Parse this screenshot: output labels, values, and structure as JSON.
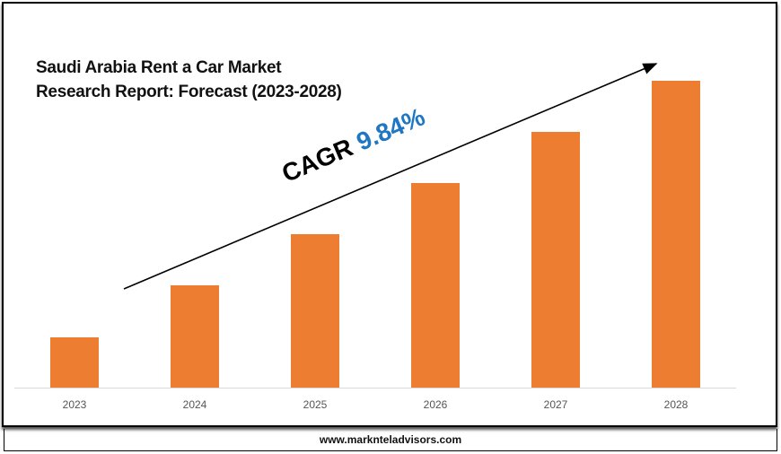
{
  "chart_data": {
    "type": "bar",
    "title": "Saudi Arabia Rent a Car Market Research Report: Forecast (2023-2028)",
    "title_lines": [
      "Saudi Arabia Rent a Car Market",
      "Research Report: Forecast (2023-2028)"
    ],
    "categories": [
      "2023",
      "2024",
      "2025",
      "2026",
      "2027",
      "2028"
    ],
    "values": [
      56,
      114,
      171,
      228,
      285,
      342
    ],
    "ylim": [
      0,
      350
    ],
    "y_axis_shown": false,
    "grid": false,
    "bar_color": "#ED7D31",
    "annotation": {
      "label": "CAGR",
      "value": "9.84%",
      "value_color": "#1F77C4",
      "arrow": "trend-up"
    }
  },
  "footer": {
    "website": "www.marknteladvisors.com"
  }
}
